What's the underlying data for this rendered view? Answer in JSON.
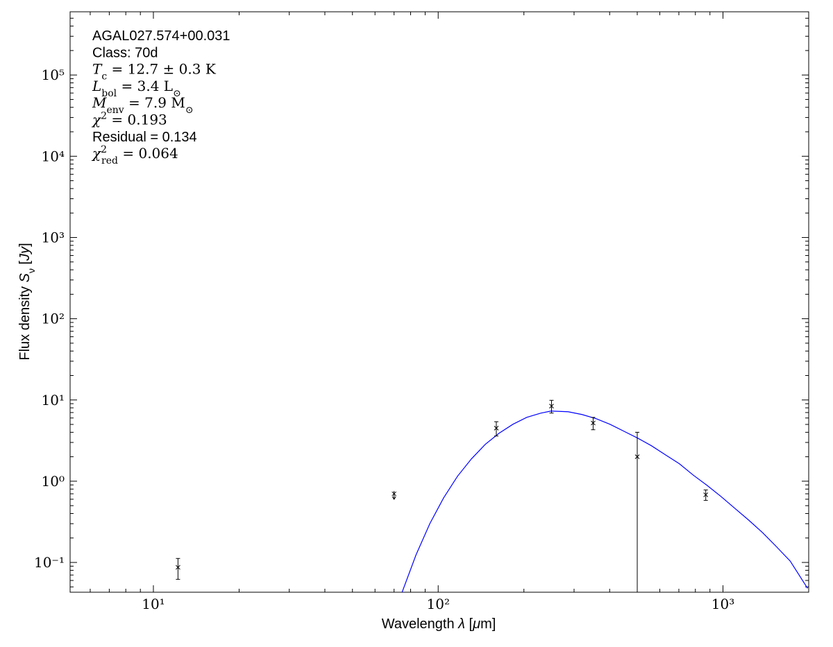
{
  "chart_data": {
    "type": "sed",
    "xlabel": [
      {
        "text": "Wavelength "
      },
      {
        "text": "λ",
        "shift": "italic"
      },
      {
        "text": " ["
      },
      {
        "text": "μ",
        "shift": "italic"
      },
      {
        "text": "m]"
      }
    ],
    "ylabel": [
      {
        "text": "Flux density "
      },
      {
        "text": "S",
        "shift": "italic"
      },
      {
        "text": "ν",
        "shift": "sub"
      },
      {
        "text": " ["
      },
      {
        "text": "Jy",
        "shift": "italic"
      },
      {
        "text": "]"
      }
    ],
    "annotations": [
      [
        {
          "text": "AGAL027.574+00.031",
          "shift": "sans"
        }
      ],
      [
        {
          "text": "Class: 70d",
          "shift": "sans"
        }
      ],
      [
        {
          "text": "T",
          "shift": "italic"
        },
        {
          "text": "c",
          "shift": "sub"
        },
        {
          "text": " = 12.7 ± 0.3 K"
        }
      ],
      [
        {
          "text": "L",
          "shift": "italic"
        },
        {
          "text": "bol",
          "shift": "sub"
        },
        {
          "text": " = 3.4 L"
        },
        {
          "text": "⊙",
          "shift": "sub"
        }
      ],
      [
        {
          "text": "M",
          "shift": "italic"
        },
        {
          "text": "env",
          "shift": "sub"
        },
        {
          "text": " = 7.9 M"
        },
        {
          "text": "⊙",
          "shift": "sub"
        }
      ],
      [
        {
          "text": "χ",
          "shift": "italic"
        },
        {
          "text": "2",
          "shift": "sup"
        },
        {
          "text": " = 0.193"
        }
      ],
      [
        {
          "text": "Residual = 0.134",
          "shift": "sans"
        }
      ],
      [
        {
          "text": "χ",
          "shift": "italic"
        },
        {
          "text": "2",
          "shift": "sup"
        },
        {
          "text": "red",
          "shift": "subback"
        },
        {
          "text": " = 0.064"
        }
      ]
    ],
    "xscale": "log",
    "yscale": "log",
    "xlim": [
      5.1,
      2000
    ],
    "ylim": [
      0.043,
      600000
    ],
    "xticks": [
      {
        "value": 10,
        "label": "10¹"
      },
      {
        "value": 100,
        "label": "10²"
      },
      {
        "value": 1000,
        "label": "10³"
      }
    ],
    "yticks": [
      {
        "value": 0.1,
        "label": "10⁻¹"
      },
      {
        "value": 1,
        "label": "10⁰"
      },
      {
        "value": 10,
        "label": "10¹"
      },
      {
        "value": 100,
        "label": "10²"
      },
      {
        "value": 1000,
        "label": "10³"
      },
      {
        "value": 10000,
        "label": "10⁴"
      },
      {
        "value": 100000,
        "label": "10⁵"
      }
    ],
    "series": [
      {
        "style": "line",
        "color": "#0000ff",
        "x": [
          74.7,
          83.6,
          93.5,
          104.5,
          116.9,
          130.8,
          146.3,
          163.6,
          183,
          204.7,
          229,
          249,
          286,
          320,
          359,
          401,
          449,
          502,
          561,
          628,
          703,
          786,
          879,
          984,
          1100,
          1231,
          1377,
          1539,
          1722,
          1982
        ],
        "values": [
          0.043,
          0.124,
          0.301,
          0.624,
          1.15,
          1.88,
          2.84,
          3.89,
          5.02,
          6.11,
          6.88,
          7.3,
          7.16,
          6.62,
          5.88,
          5.02,
          4.12,
          3.39,
          2.73,
          2.11,
          1.64,
          1.19,
          0.889,
          0.649,
          0.464,
          0.332,
          0.233,
          0.157,
          0.104,
          0.048
        ]
      },
      {
        "style": "errorbar",
        "color": "#000000",
        "x": [
          12.2,
          160,
          250,
          350,
          500,
          870
        ],
        "values": [
          0.087,
          4.5,
          8.4,
          5.2,
          2.0,
          0.68
        ],
        "errors": [
          0.025,
          0.9,
          1.5,
          0.9,
          2.0,
          0.1
        ]
      },
      {
        "style": "upper_limit",
        "color": "#000000",
        "x": [
          70
        ],
        "values": [
          0.7
        ]
      }
    ]
  }
}
